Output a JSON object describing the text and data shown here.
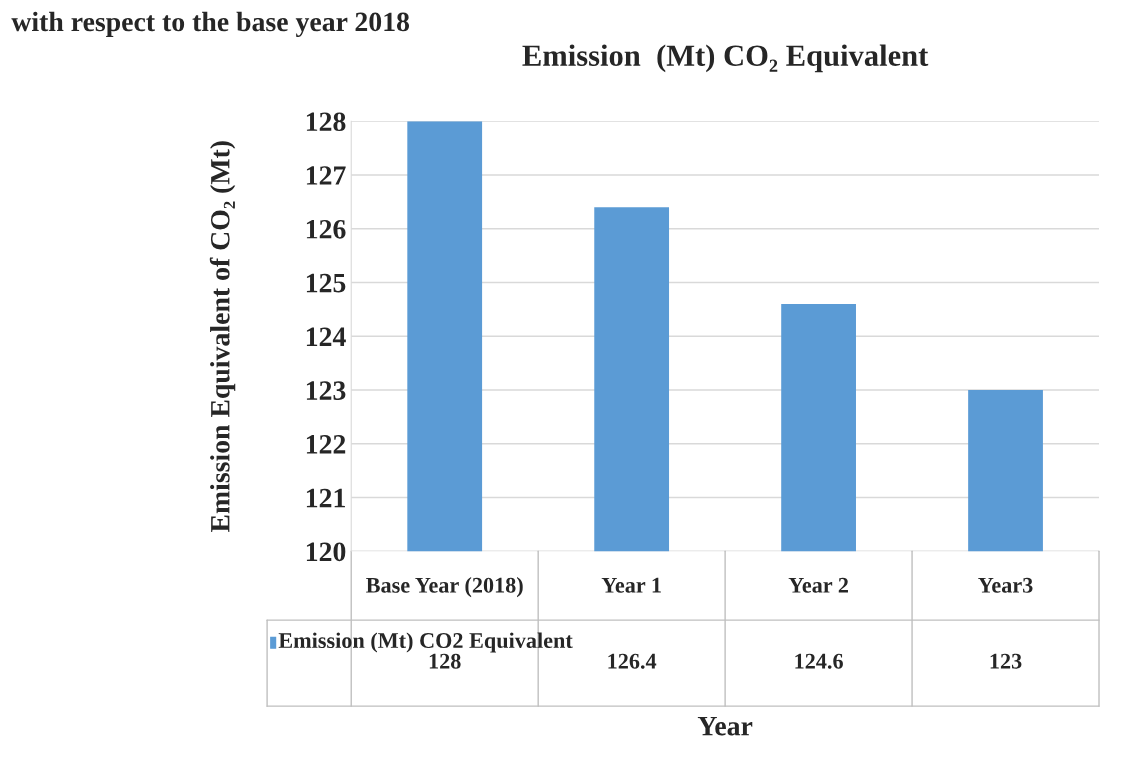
{
  "chart_data": {
    "type": "bar",
    "title": "Emission  (Mt) CO₂ Equivalent",
    "xlabel": "Year",
    "ylabel": "Emission Equivalent of CO₂ (Mt)",
    "annotations": [
      "with respect to the base year 2018"
    ],
    "categories": [
      "Base Year (2018)",
      "Year 1",
      "Year 2",
      "Year3"
    ],
    "series": [
      {
        "name": "Emission (Mt) CO2 Equivalent",
        "color": "#5b9bd5",
        "values": [
          128,
          126.4,
          124.6,
          123
        ]
      }
    ],
    "ylim": [
      120,
      128
    ],
    "yticks": [
      120,
      121,
      122,
      123,
      124,
      125,
      126,
      127,
      128
    ],
    "grid": "y",
    "legend": "bottom",
    "data_labels": true
  }
}
